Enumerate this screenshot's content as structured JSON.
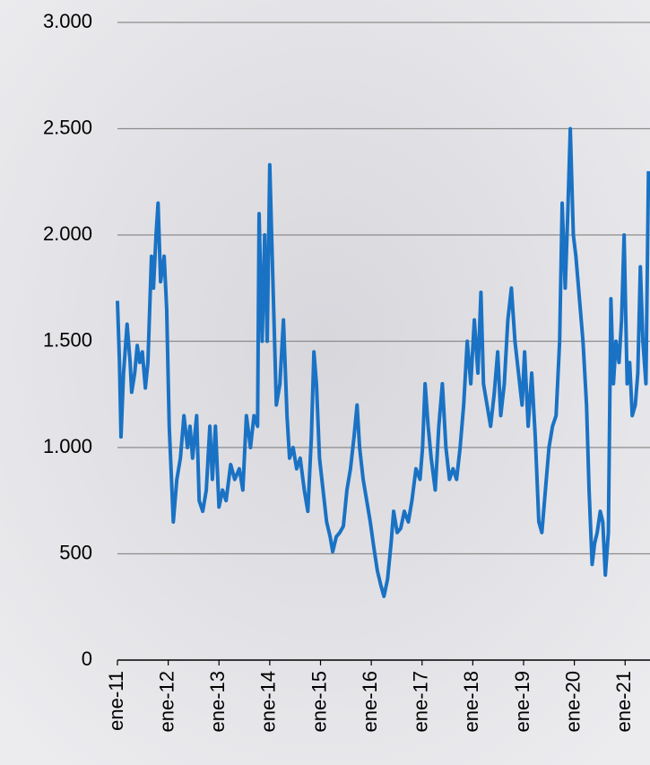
{
  "chart_data": {
    "type": "line",
    "x": [
      2011.0,
      2011.04,
      2011.07,
      2011.12,
      2011.19,
      2011.25,
      2011.28,
      2011.34,
      2011.39,
      2011.44,
      2011.49,
      2011.55,
      2011.6,
      2011.67,
      2011.71,
      2011.76,
      2011.8,
      2011.85,
      2011.92,
      2011.97,
      2012.02,
      2012.1,
      2012.17,
      2012.24,
      2012.31,
      2012.38,
      2012.43,
      2012.48,
      2012.56,
      2012.61,
      2012.68,
      2012.75,
      2012.82,
      2012.87,
      2012.93,
      2013.0,
      2013.07,
      2013.14,
      2013.23,
      2013.31,
      2013.4,
      2013.47,
      2013.54,
      2013.62,
      2013.69,
      2013.76,
      2013.79,
      2013.85,
      2013.9,
      2013.95,
      2014.0,
      2014.06,
      2014.13,
      2014.2,
      2014.27,
      2014.34,
      2014.39,
      2014.46,
      2014.53,
      2014.6,
      2014.68,
      2014.75,
      2014.82,
      2014.87,
      2014.92,
      2014.98,
      2015.05,
      2015.12,
      2015.19,
      2015.24,
      2015.31,
      2015.38,
      2015.45,
      2015.52,
      2015.59,
      2015.66,
      2015.72,
      2015.77,
      2015.84,
      2015.91,
      2015.98,
      2016.05,
      2016.12,
      2016.19,
      2016.25,
      2016.32,
      2016.39,
      2016.44,
      2016.51,
      2016.58,
      2016.65,
      2016.73,
      2016.8,
      2016.88,
      2016.96,
      2017.01,
      2017.06,
      2017.12,
      2017.18,
      2017.26,
      2017.33,
      2017.4,
      2017.47,
      2017.54,
      2017.61,
      2017.68,
      2017.75,
      2017.82,
      2017.89,
      2017.96,
      2018.03,
      2018.1,
      2018.16,
      2018.21,
      2018.28,
      2018.35,
      2018.42,
      2018.49,
      2018.55,
      2018.62,
      2018.69,
      2018.76,
      2018.83,
      2018.9,
      2018.97,
      2019.02,
      2019.09,
      2019.16,
      2019.23,
      2019.3,
      2019.36,
      2019.43,
      2019.5,
      2019.57,
      2019.64,
      2019.71,
      2019.76,
      2019.82,
      2019.87,
      2019.92,
      2019.98,
      2020.03,
      2020.1,
      2020.17,
      2020.24,
      2020.29,
      2020.35,
      2020.4,
      2020.45,
      2020.51,
      2020.56,
      2020.61,
      2020.67,
      2020.72,
      2020.77,
      2020.82,
      2020.88,
      2020.93,
      2020.98,
      2021.04,
      2021.09,
      2021.14,
      2021.2,
      2021.25,
      2021.3,
      2021.35,
      2021.41,
      2021.46
    ],
    "values": [
      1690,
      1400,
      1050,
      1350,
      1580,
      1400,
      1260,
      1350,
      1480,
      1400,
      1450,
      1280,
      1400,
      1900,
      1750,
      2000,
      2150,
      1780,
      1900,
      1650,
      1100,
      650,
      850,
      950,
      1150,
      1000,
      1100,
      950,
      1150,
      750,
      700,
      800,
      1100,
      850,
      1100,
      720,
      800,
      750,
      920,
      850,
      900,
      800,
      1150,
      1000,
      1150,
      1100,
      2100,
      1500,
      2000,
      1500,
      2330,
      1800,
      1200,
      1300,
      1600,
      1150,
      950,
      1000,
      900,
      950,
      800,
      700,
      1050,
      1450,
      1300,
      950,
      800,
      650,
      580,
      510,
      580,
      600,
      630,
      800,
      900,
      1050,
      1200,
      1000,
      850,
      750,
      650,
      530,
      420,
      350,
      300,
      380,
      550,
      700,
      600,
      620,
      700,
      650,
      750,
      900,
      850,
      1000,
      1300,
      1100,
      950,
      800,
      1100,
      1300,
      1000,
      850,
      900,
      850,
      1000,
      1200,
      1500,
      1300,
      1600,
      1350,
      1730,
      1300,
      1200,
      1100,
      1250,
      1450,
      1150,
      1300,
      1600,
      1750,
      1500,
      1350,
      1200,
      1450,
      1100,
      1350,
      1050,
      650,
      600,
      800,
      1000,
      1100,
      1150,
      1500,
      2150,
      1750,
      2100,
      2500,
      2000,
      1900,
      1700,
      1500,
      1200,
      800,
      450,
      550,
      600,
      700,
      650,
      400,
      600,
      1700,
      1300,
      1500,
      1400,
      1600,
      2000,
      1300,
      1400,
      1150,
      1200,
      1350,
      1850,
      1500,
      1300,
      2300
    ],
    "color": "#1a72c4",
    "xlim": [
      2011,
      2021.49
    ],
    "xticks": [
      {
        "value": 2011,
        "label": "ene-11"
      },
      {
        "value": 2012,
        "label": "ene-12"
      },
      {
        "value": 2013,
        "label": "ene-13"
      },
      {
        "value": 2014,
        "label": "ene-14"
      },
      {
        "value": 2015,
        "label": "ene-15"
      },
      {
        "value": 2016,
        "label": "ene-16"
      },
      {
        "value": 2017,
        "label": "ene-17"
      },
      {
        "value": 2018,
        "label": "ene-18"
      },
      {
        "value": 2019,
        "label": "ene-19"
      },
      {
        "value": 2020,
        "label": "ene-20"
      },
      {
        "value": 2021,
        "label": "ene-21"
      }
    ],
    "ylim": [
      0,
      3000
    ],
    "yticks": [
      0,
      500,
      {
        "value": 1000,
        "label": "1.000"
      },
      {
        "value": 1500,
        "label": "1.500"
      },
      {
        "value": 2000,
        "label": "2.000"
      },
      {
        "value": 2500,
        "label": "2.500"
      },
      {
        "value": 3000,
        "label": "3.000"
      }
    ],
    "grid": true
  }
}
